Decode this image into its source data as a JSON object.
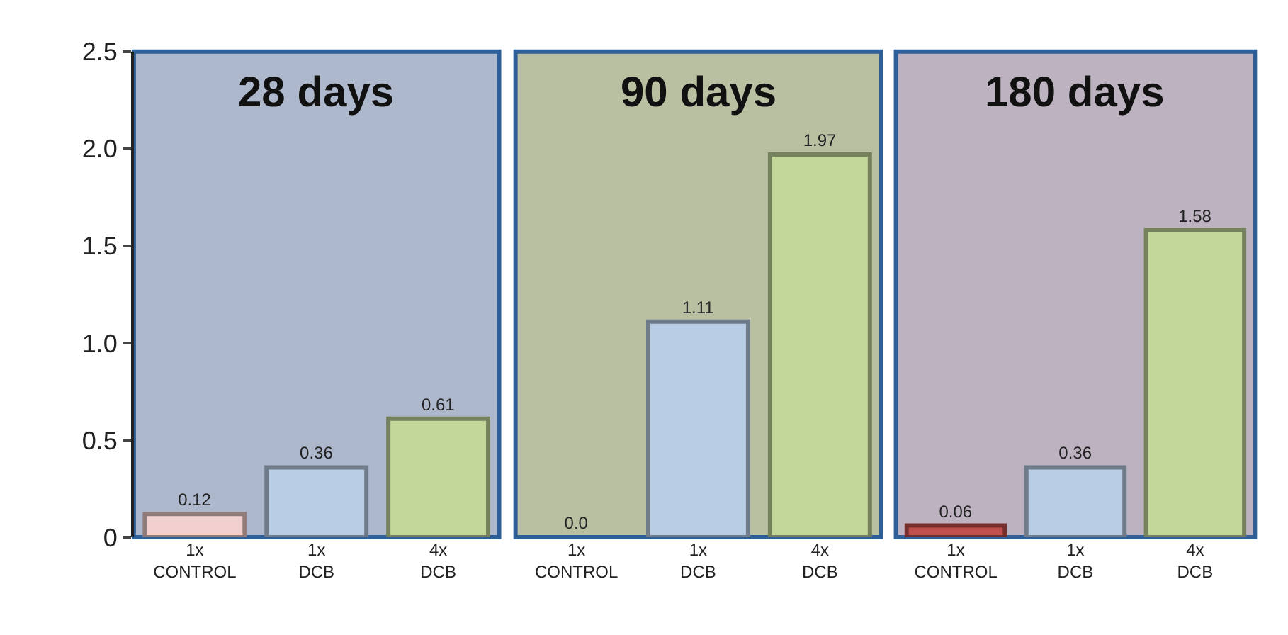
{
  "chart_data": [
    {
      "type": "bar",
      "title": "28 days",
      "categories": [
        "1x\nCONTROL",
        "1x\nDCB",
        "4x\nDCB"
      ],
      "values": [
        0.12,
        0.36,
        0.61
      ],
      "colors": [
        "#f2d0cf",
        "#b9cde5",
        "#c4d79b"
      ],
      "ylim": [
        0,
        2.5
      ],
      "yticks": [
        {
          "value": 0,
          "label": "0"
        },
        {
          "value": 0.5,
          "label": "0.5"
        },
        {
          "value": 1,
          "label": "1.0"
        },
        {
          "value": 1.5,
          "label": "1.5"
        },
        {
          "value": 2,
          "label": "2.0"
        },
        {
          "value": 2.5,
          "label": "2.5"
        }
      ],
      "data_labels": true
    },
    {
      "type": "bar",
      "title": "90 days",
      "categories": [
        "1x\nCONTROL",
        "1x\nDCB",
        "4x\nDCB"
      ],
      "values": [
        0.0,
        1.11,
        1.97
      ],
      "colors": [
        null,
        "#b9cde5",
        "#c4d79b"
      ],
      "ylim": [
        0,
        2.5
      ],
      "value_labels": [
        "0.0",
        "1.11",
        "1.97"
      ],
      "tick_labels": "x"
    },
    {
      "type": "bar",
      "title": "180 days",
      "categories": [
        "1x\nCONTROL",
        "1x\nDCB",
        "4x\nDCB"
      ],
      "values": [
        0.06,
        0.36,
        1.58
      ],
      "colors": [
        "#c0504d",
        "#b9cde5",
        "#c4d79b"
      ],
      "ylim": [
        0,
        2.5
      ],
      "data_labels": true,
      "tick_labels": "x"
    }
  ]
}
